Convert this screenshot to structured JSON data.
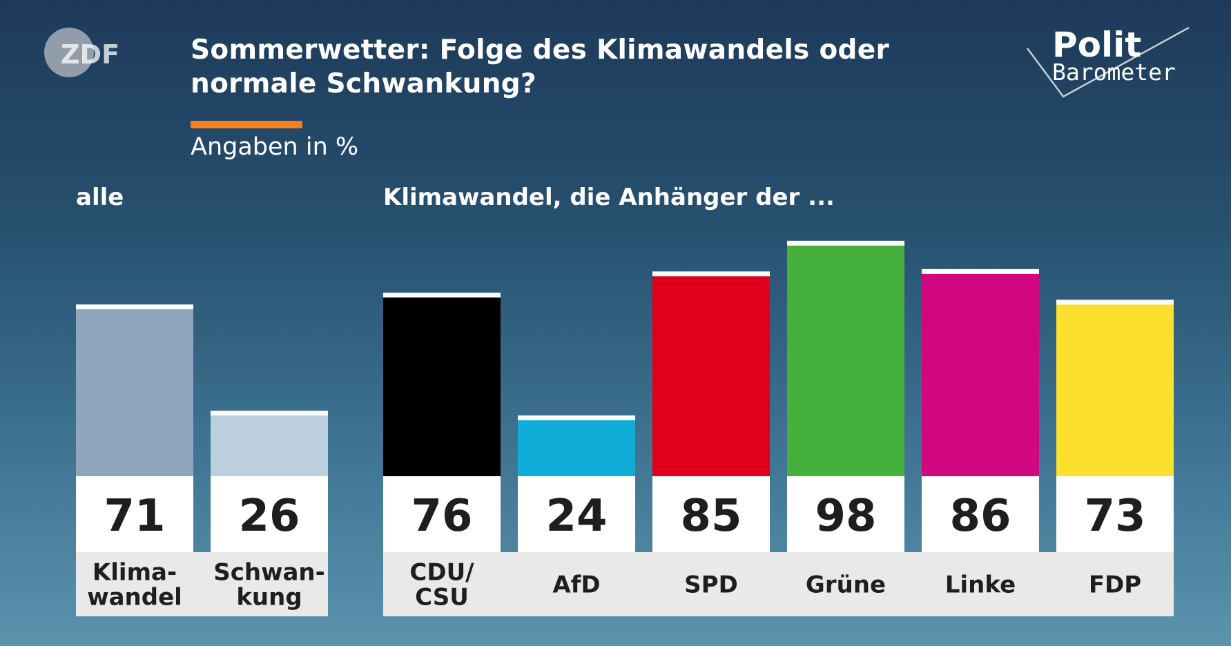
{
  "header": {
    "title_line1": "Sommerwetter: Folge des Klimawandels oder",
    "title_line2": "normale Schwankung?",
    "subtitle": "Angaben in %",
    "accent_color": "#f2801f"
  },
  "branding": {
    "broadcaster_logo": "ZDF",
    "program_logo_line1": "Polit",
    "program_logo_line2": "Barometer"
  },
  "groups": {
    "all_label": "alle",
    "parties_label": "Klimawandel, die Anhänger der ..."
  },
  "chart_data": [
    {
      "type": "bar",
      "group_label": "alle",
      "categories": [
        [
          "Klima-",
          "wandel"
        ],
        [
          "Schwan-",
          "kung"
        ]
      ],
      "values": [
        71,
        26
      ],
      "colors": [
        "#8ea6be",
        "#bccfdf"
      ],
      "unit": "%"
    },
    {
      "type": "bar",
      "group_label": "Klimawandel, die Anhänger der ...",
      "categories": [
        [
          "CDU/",
          "CSU"
        ],
        [
          "AfD"
        ],
        [
          "SPD"
        ],
        [
          "Grüne"
        ],
        [
          "Linke"
        ],
        [
          "FDP"
        ]
      ],
      "values": [
        76,
        24,
        85,
        98,
        86,
        73
      ],
      "colors": [
        "#000000",
        "#0fadd8",
        "#e0001b",
        "#46b03d",
        "#d0077e",
        "#fbe12d"
      ],
      "unit": "%"
    }
  ]
}
